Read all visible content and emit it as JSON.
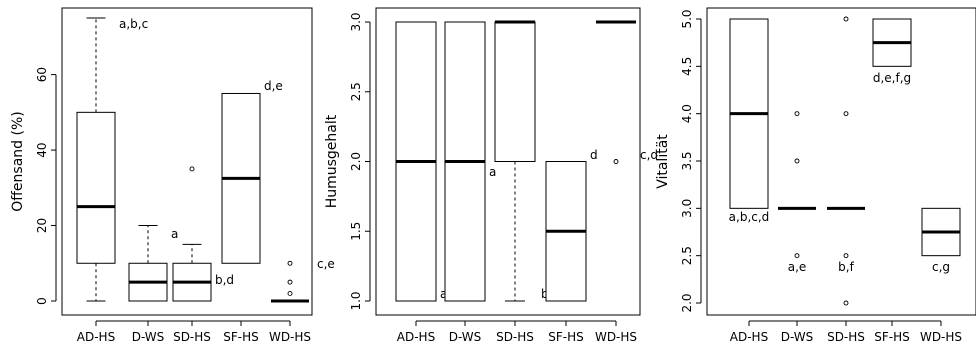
{
  "chart_data": [
    {
      "type": "boxplot",
      "ylabel": "Offensand (%)",
      "ylim": [
        0,
        75
      ],
      "yticks": [
        0,
        20,
        40,
        60
      ],
      "categories": [
        "AD-HS",
        "D-WS",
        "SD-HS",
        "SF-HS",
        "WD-HS"
      ],
      "boxes": [
        {
          "category": "AD-HS",
          "min": 0,
          "q1": 10,
          "median": 25,
          "q3": 50,
          "max": 75,
          "outliers": [],
          "letters": "a,b,c"
        },
        {
          "category": "D-WS",
          "min": 0,
          "q1": 0,
          "median": 5,
          "q3": 10,
          "max": 20,
          "outliers": [],
          "letters": "a"
        },
        {
          "category": "SD-HS",
          "min": 0,
          "q1": 0,
          "median": 5,
          "q3": 10,
          "max": 15,
          "outliers": [
            35
          ],
          "letters": "b,d"
        },
        {
          "category": "SF-HS",
          "min": 10,
          "q1": 10,
          "median": 32.5,
          "q3": 55,
          "max": 55,
          "outliers": [],
          "letters": "d,e"
        },
        {
          "category": "WD-HS",
          "min": 0,
          "q1": 0,
          "median": 0,
          "q3": 0,
          "max": 0,
          "outliers": [
            2,
            5,
            10
          ],
          "letters": "c,e"
        }
      ]
    },
    {
      "type": "boxplot",
      "ylabel": "Humusgehalt",
      "ylim": [
        1,
        3
      ],
      "yticks": [
        1.0,
        1.5,
        2.0,
        2.5,
        3.0
      ],
      "categories": [
        "AD-HS",
        "D-WS",
        "SD-HS",
        "SF-HS",
        "WD-HS"
      ],
      "boxes": [
        {
          "category": "AD-HS",
          "min": 1,
          "q1": 1,
          "median": 2,
          "q3": 3,
          "max": 3,
          "outliers": [],
          "letters": "a,b,c"
        },
        {
          "category": "D-WS",
          "min": 1,
          "q1": 1,
          "median": 2,
          "q3": 3,
          "max": 3,
          "outliers": [],
          "letters": "a"
        },
        {
          "category": "SD-HS",
          "min": 1,
          "q1": 2,
          "median": 3,
          "q3": 3,
          "max": 3,
          "outliers": [],
          "letters": "b"
        },
        {
          "category": "SF-HS",
          "min": 1,
          "q1": 1,
          "median": 1.5,
          "q3": 2,
          "max": 2,
          "outliers": [],
          "letters": "d"
        },
        {
          "category": "WD-HS",
          "min": 3,
          "q1": 3,
          "median": 3,
          "q3": 3,
          "max": 3,
          "outliers": [
            2
          ],
          "letters": "c,d"
        }
      ]
    },
    {
      "type": "boxplot",
      "ylabel": "Vitalität",
      "ylim": [
        2,
        5
      ],
      "yticks": [
        2.0,
        2.5,
        3.0,
        3.5,
        4.0,
        4.5,
        5.0
      ],
      "categories": [
        "AD-HS",
        "D-WS",
        "SD-HS",
        "SF-HS",
        "WD-HS"
      ],
      "boxes": [
        {
          "category": "AD-HS",
          "min": 3,
          "q1": 3,
          "median": 4,
          "q3": 5,
          "max": 5,
          "outliers": [],
          "letters": "a,b,c,d"
        },
        {
          "category": "D-WS",
          "min": 3,
          "q1": 3,
          "median": 3,
          "q3": 3,
          "max": 3,
          "outliers": [
            2.5,
            3.5,
            4
          ],
          "letters": "a,e"
        },
        {
          "category": "SD-HS",
          "min": 3,
          "q1": 3,
          "median": 3,
          "q3": 3,
          "max": 3,
          "outliers": [
            2,
            2.5,
            4,
            5
          ],
          "letters": "b,f"
        },
        {
          "category": "SF-HS",
          "min": 4.5,
          "q1": 4.5,
          "median": 4.75,
          "q3": 5,
          "max": 5,
          "outliers": [],
          "letters": "d,e,f,g"
        },
        {
          "category": "WD-HS",
          "min": 2.5,
          "q1": 2.5,
          "median": 2.75,
          "q3": 3,
          "max": 3,
          "outliers": [],
          "letters": "c,g"
        }
      ]
    }
  ]
}
